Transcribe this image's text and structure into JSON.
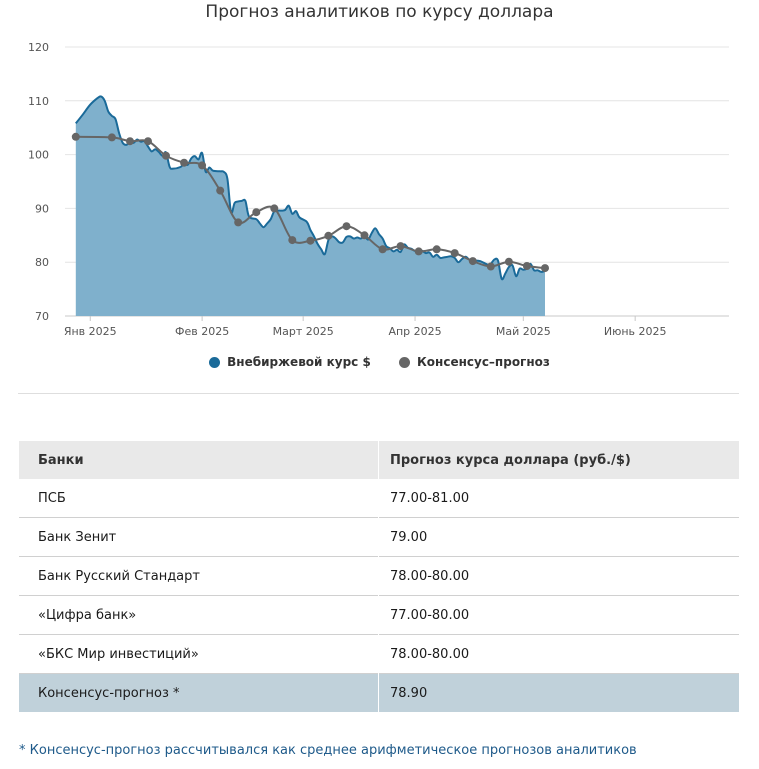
{
  "chart_data": {
    "type": "area",
    "title": "Прогноз аналитиков по курсу доллара",
    "ylim": [
      70,
      120
    ],
    "yticks": [
      "120",
      "110",
      "100",
      "90",
      "80",
      "70"
    ],
    "xticks": [
      {
        "label": "Янв 2025",
        "day": 0
      },
      {
        "label": "Фев 2025",
        "day": 31
      },
      {
        "label": "Март 2025",
        "day": 59
      },
      {
        "label": "Апр 2025",
        "day": 90
      },
      {
        "label": "Май 2025",
        "day": 120
      },
      {
        "label": "Июнь 2025",
        "day": 151
      }
    ],
    "x_range_days": [
      -7,
      177
    ],
    "grid": true,
    "series": [
      {
        "name": "Внебиржевой курс $",
        "color": "#1a6a99",
        "fill": "#7fb0cc",
        "type": "area",
        "points": [
          [
            -4,
            105.8
          ],
          [
            -2,
            107.5
          ],
          [
            0,
            109.3
          ],
          [
            2,
            110.5
          ],
          [
            3,
            110.8
          ],
          [
            4,
            110
          ],
          [
            5,
            108
          ],
          [
            6,
            107.2
          ],
          [
            7,
            106.6
          ],
          [
            8,
            104
          ],
          [
            9,
            102.2
          ],
          [
            10,
            101.8
          ],
          [
            11,
            102.3
          ],
          [
            12,
            102.2
          ],
          [
            13,
            102.8
          ],
          [
            14,
            102.4
          ],
          [
            15,
            102.5
          ],
          [
            16,
            101.5
          ],
          [
            17,
            100.6
          ],
          [
            18,
            101
          ],
          [
            19,
            100.5
          ],
          [
            20,
            99.8
          ],
          [
            21,
            100.4
          ],
          [
            22,
            97.7
          ],
          [
            23,
            97.4
          ],
          [
            25,
            97.7
          ],
          [
            26,
            98.3
          ],
          [
            27,
            98.1
          ],
          [
            28,
            99.3
          ],
          [
            29,
            99.7
          ],
          [
            30,
            99.1
          ],
          [
            31,
            100.3
          ],
          [
            32,
            96.8
          ],
          [
            33,
            97.6
          ],
          [
            34,
            97.0
          ],
          [
            36,
            96.9
          ],
          [
            37,
            96.8
          ],
          [
            38,
            95.5
          ],
          [
            39,
            89.3
          ],
          [
            40,
            91.0
          ],
          [
            41,
            91.3
          ],
          [
            42,
            91.4
          ],
          [
            43,
            91.4
          ],
          [
            44,
            88.5
          ],
          [
            46,
            88.0
          ],
          [
            47,
            87.2
          ],
          [
            48,
            86.5
          ],
          [
            49,
            87.2
          ],
          [
            50,
            88.0
          ],
          [
            51,
            89.5
          ],
          [
            52,
            89.6
          ],
          [
            53,
            89.6
          ],
          [
            54,
            89.7
          ],
          [
            55,
            90.5
          ],
          [
            56,
            89.0
          ],
          [
            57,
            89.5
          ],
          [
            58,
            88.3
          ],
          [
            60,
            87.5
          ],
          [
            61,
            86.0
          ],
          [
            62,
            84.8
          ],
          [
            63,
            83.4
          ],
          [
            64,
            82.4
          ],
          [
            65,
            81.5
          ],
          [
            66,
            84.1
          ],
          [
            67,
            84.8
          ],
          [
            68,
            84.4
          ],
          [
            69,
            83.7
          ],
          [
            70,
            83.7
          ],
          [
            71,
            84.7
          ],
          [
            72,
            84.8
          ],
          [
            73,
            84.4
          ],
          [
            74,
            84.6
          ],
          [
            75,
            84.4
          ],
          [
            76,
            84.9
          ],
          [
            77,
            84.2
          ],
          [
            78,
            85.4
          ],
          [
            79,
            86.3
          ],
          [
            80,
            85.2
          ],
          [
            81,
            84.4
          ],
          [
            82,
            83.0
          ],
          [
            83,
            82.6
          ],
          [
            84,
            82.0
          ],
          [
            85,
            82.3
          ],
          [
            86,
            81.9
          ],
          [
            87,
            83.3
          ],
          [
            88,
            82.7
          ],
          [
            89,
            82.5
          ],
          [
            90,
            82.1
          ],
          [
            91,
            82.3
          ],
          [
            92,
            82.1
          ],
          [
            93,
            81.7
          ],
          [
            94,
            81.8
          ],
          [
            95,
            81.0
          ],
          [
            96,
            81.4
          ],
          [
            97,
            80.8
          ],
          [
            98,
            80.9
          ],
          [
            99,
            81.0
          ],
          [
            100,
            81.1
          ],
          [
            101,
            80.8
          ],
          [
            102,
            80.0
          ],
          [
            103,
            80.6
          ],
          [
            104,
            81.0
          ],
          [
            105,
            80.5
          ],
          [
            106,
            80.2
          ],
          [
            107,
            80.3
          ],
          [
            108,
            80.2
          ],
          [
            109,
            79.9
          ],
          [
            110,
            79.6
          ],
          [
            111,
            79.7
          ],
          [
            112,
            80.5
          ],
          [
            113,
            80.3
          ],
          [
            114,
            76.9
          ],
          [
            115,
            77.9
          ],
          [
            116,
            79.1
          ],
          [
            117,
            79.4
          ],
          [
            118,
            77.4
          ],
          [
            119,
            78.8
          ],
          [
            120,
            78.6
          ],
          [
            121,
            78.8
          ],
          [
            122,
            79.7
          ],
          [
            123,
            78.5
          ],
          [
            124,
            78.5
          ],
          [
            125,
            78.2
          ],
          [
            126,
            78.4
          ]
        ]
      },
      {
        "name": "Консенсус-прогноз",
        "color": "#666666",
        "type": "line",
        "points": [
          [
            -4,
            103.3
          ],
          [
            6,
            103.2
          ],
          [
            11,
            102.5
          ],
          [
            16,
            102.5
          ],
          [
            21,
            99.8
          ],
          [
            26,
            98.5
          ],
          [
            31,
            98.0
          ],
          [
            36,
            93.3
          ],
          [
            41,
            87.4
          ],
          [
            46,
            89.3
          ],
          [
            51,
            90.0
          ],
          [
            56,
            84.1
          ],
          [
            61,
            84.0
          ],
          [
            66,
            84.9
          ],
          [
            71,
            86.7
          ],
          [
            76,
            85.0
          ],
          [
            81,
            82.4
          ],
          [
            86,
            83.0
          ],
          [
            91,
            82.0
          ],
          [
            96,
            82.4
          ],
          [
            101,
            81.7
          ],
          [
            106,
            80.2
          ],
          [
            111,
            79.2
          ],
          [
            116,
            80.1
          ],
          [
            121,
            79.3
          ],
          [
            126,
            78.9
          ]
        ]
      }
    ]
  },
  "legend": {
    "series1_label": "Внебиржевой курс $",
    "series2_label": "Консенсус–прогноз"
  },
  "table": {
    "headers": [
      "Банки",
      "Прогноз курса доллара (руб./$)"
    ],
    "rows": [
      {
        "bank": "ПСБ",
        "forecast": "77.00-81.00"
      },
      {
        "bank": "Банк Зенит",
        "forecast": "79.00"
      },
      {
        "bank": "Банк Русский Стандарт",
        "forecast": "78.00-80.00"
      },
      {
        "bank": "«Цифра банк»",
        "forecast": "77.00-80.00"
      },
      {
        "bank": "«БКС Мир инвестиций»",
        "forecast": "78.00-80.00"
      }
    ],
    "total": {
      "bank": "Консенсус-прогноз *",
      "forecast": "78.90"
    }
  },
  "footnote": "* Консенсус-прогноз рассчитывался как среднее арифметическое прогнозов аналитиков"
}
